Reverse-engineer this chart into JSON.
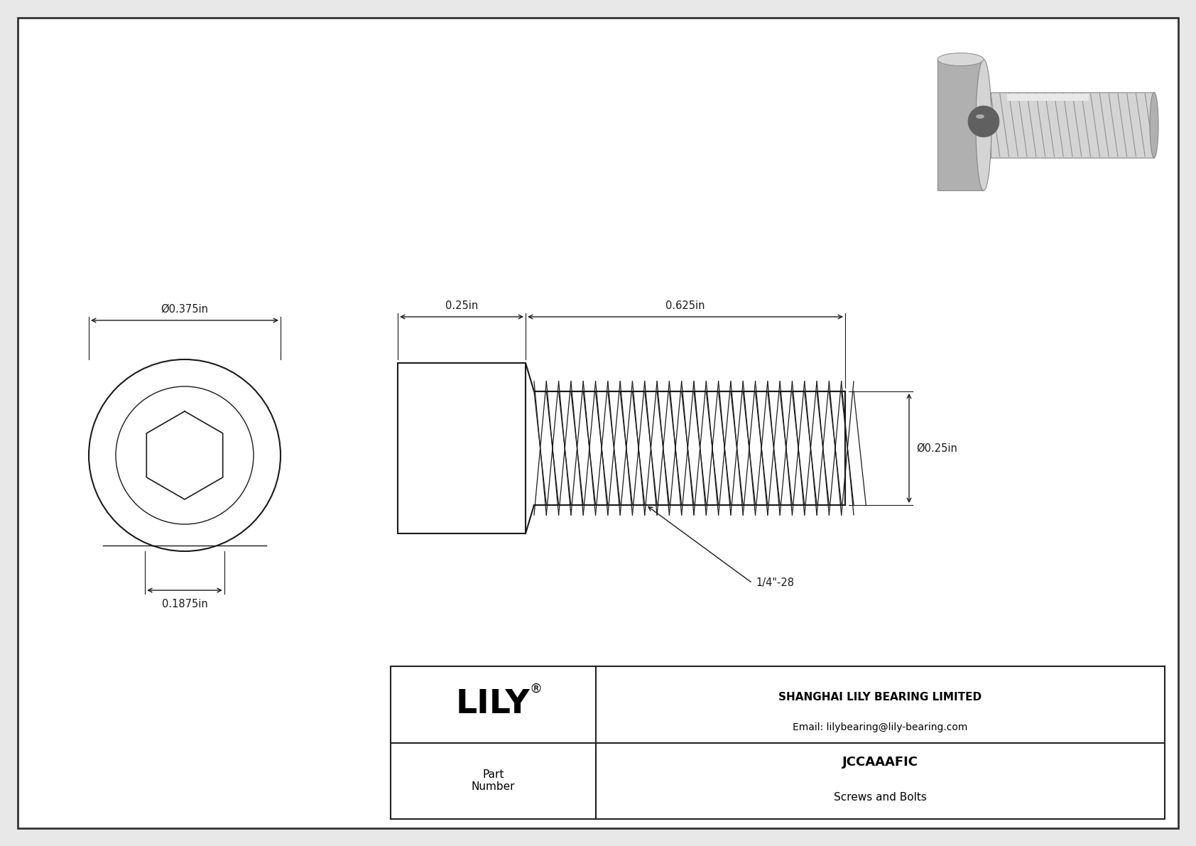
{
  "bg_color": "#e8e8e8",
  "drawing_bg": "#ffffff",
  "line_color": "#1a1a1a",
  "dim_color": "#1a1a1a",
  "title": "JCCAAAFIC",
  "subtitle": "Screws and Bolts",
  "company": "SHANGHAI LILY BEARING LIMITED",
  "email": "Email: lilybearing@lily-bearing.com",
  "part_label": "Part\nNumber",
  "dim_head_dia": "Ø0.375in",
  "dim_hex_depth": "0.1875in",
  "dim_head_len": "0.25in",
  "dim_thread_len": "0.625in",
  "dim_thread_dia": "Ø0.25in",
  "dim_thread_label": "1/4\"-28",
  "border_color": "#333333",
  "n_threads": 26,
  "thread_amplitude": 0.28
}
